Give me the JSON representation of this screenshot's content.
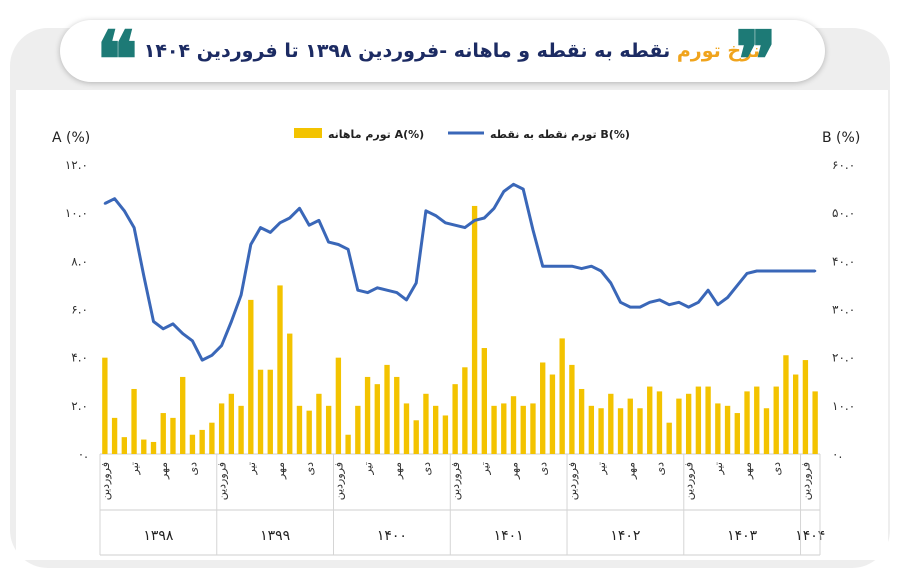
{
  "header": {
    "title_highlight": "نرخ تورم",
    "title_main": "نقطه به نقطه و ماهانه",
    "title_range": "-فروردین ۱۳۹۸ تا فروردین ۱۴۰۴",
    "quote_open": "❝",
    "quote_close": "❞"
  },
  "colors": {
    "bars": "#f3c300",
    "line": "#3a67b8",
    "title": "#1c2b63",
    "accent": "#f0a41d",
    "quote": "#1d7a76"
  },
  "chart_data": {
    "type": "bar+line",
    "left_axis_label": "A (%)",
    "right_axis_label": "B (%)",
    "left_ticks": [
      "۰.",
      "۲.۰",
      "۴.۰",
      "۶.۰",
      "۸.۰",
      "۱۰.۰",
      "۱۲.۰"
    ],
    "right_ticks": [
      "۰.",
      "۱۰.۰",
      "۲۰.۰",
      "۳۰.۰",
      "۴۰.۰",
      "۵۰.۰",
      "۶۰.۰"
    ],
    "left_ylim": [
      0,
      12
    ],
    "right_ylim": [
      0,
      60
    ],
    "legend": [
      {
        "key": "bars",
        "label": "تورم ماهانه A(%)"
      },
      {
        "key": "line",
        "label": "تورم نقطه به نقطه B(%)"
      }
    ],
    "legend_position": "top-center",
    "month_labels": [
      "فروردین",
      "تیر",
      "مهر",
      "دی"
    ],
    "year_labels": [
      "۱۳۹۸",
      "۱۳۹۹",
      "۱۴۰۰",
      "۱۴۰۱",
      "۱۴۰۲",
      "۱۴۰۳",
      "۱۴۰۴"
    ],
    "monthly_A": [
      4.0,
      1.5,
      0.7,
      2.7,
      0.6,
      0.5,
      1.7,
      1.5,
      3.2,
      0.8,
      1.0,
      1.3,
      2.1,
      2.5,
      2.0,
      6.4,
      3.5,
      3.5,
      7.0,
      5.0,
      2.0,
      1.8,
      2.5,
      2.0,
      4.0,
      0.8,
      2.0,
      3.2,
      2.9,
      3.7,
      3.2,
      2.1,
      1.4,
      2.5,
      2.0,
      1.6,
      2.9,
      3.6,
      10.3,
      4.4,
      2.0,
      2.1,
      2.4,
      2.0,
      2.1,
      3.8,
      3.3,
      4.8,
      3.7,
      2.7,
      2.0,
      1.9,
      2.5,
      1.9,
      2.3,
      1.9,
      2.8,
      2.6,
      1.3,
      2.3,
      2.5,
      2.8,
      2.8,
      2.1,
      2.0,
      1.7,
      2.6,
      2.8,
      1.9,
      2.8,
      4.1,
      3.3,
      3.9,
      2.6
    ],
    "point_to_point_B": [
      52.0,
      53.0,
      50.5,
      47.0,
      37.0,
      27.5,
      26.0,
      27.0,
      25.0,
      23.5,
      19.5,
      20.5,
      22.5,
      27.5,
      33.0,
      43.5,
      47.0,
      46.0,
      48.0,
      49.0,
      51.0,
      47.5,
      48.5,
      44.0,
      43.5,
      42.5,
      34.0,
      33.5,
      34.5,
      34.0,
      33.5,
      32.0,
      35.5,
      50.5,
      49.5,
      48.0,
      47.5,
      47.0,
      48.5,
      49.0,
      51.0,
      54.5,
      56.0,
      55.0,
      46.5,
      39.0,
      39.0,
      39.0,
      39.0,
      38.5,
      39.0,
      38.0,
      35.5,
      31.5,
      30.5,
      30.5,
      31.5,
      32.0,
      31.0,
      31.5,
      30.5,
      31.5,
      34.0,
      31.0,
      32.5,
      35.0,
      37.5,
      38.0,
      38.0,
      38.0,
      38.0,
      38.0,
      38.0,
      38.0
    ]
  }
}
